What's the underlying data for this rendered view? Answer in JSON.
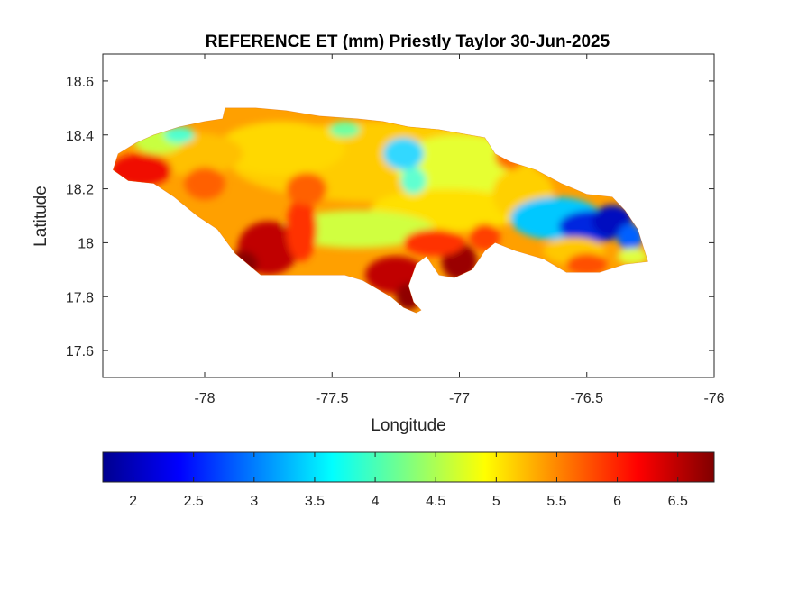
{
  "figure": {
    "title": "REFERENCE ET (mm) Priestly Taylor 30-Jun-2025",
    "xlabel": "Longitude",
    "ylabel": "Latitude"
  },
  "map": {
    "xlim": [
      -78.4,
      -76.0
    ],
    "ylim": [
      17.5,
      18.7
    ],
    "x_ticks": [
      -78,
      -77.5,
      -77,
      -76.5,
      -76
    ],
    "x_tick_labels": [
      "-78",
      "-77.5",
      "-77",
      "-76.5",
      "-76"
    ],
    "y_ticks": [
      17.6,
      17.8,
      18.0,
      18.2,
      18.4,
      18.6
    ],
    "y_tick_labels": [
      "17.6",
      "17.8",
      "18",
      "18.2",
      "18.4",
      "18.6"
    ],
    "outline": [
      [
        -78.36,
        18.27
      ],
      [
        -78.34,
        18.33
      ],
      [
        -78.27,
        18.37
      ],
      [
        -78.2,
        18.4
      ],
      [
        -78.1,
        18.43
      ],
      [
        -78.0,
        18.45
      ],
      [
        -77.93,
        18.46
      ],
      [
        -77.92,
        18.5
      ],
      [
        -77.8,
        18.5
      ],
      [
        -77.68,
        18.49
      ],
      [
        -77.55,
        18.47
      ],
      [
        -77.4,
        18.46
      ],
      [
        -77.3,
        18.45
      ],
      [
        -77.2,
        18.43
      ],
      [
        -77.08,
        18.42
      ],
      [
        -76.96,
        18.4
      ],
      [
        -76.9,
        18.39
      ],
      [
        -76.86,
        18.33
      ],
      [
        -76.8,
        18.3
      ],
      [
        -76.7,
        18.27
      ],
      [
        -76.6,
        18.22
      ],
      [
        -76.5,
        18.18
      ],
      [
        -76.4,
        18.17
      ],
      [
        -76.35,
        18.12
      ],
      [
        -76.3,
        18.05
      ],
      [
        -76.26,
        17.93
      ],
      [
        -76.35,
        17.92
      ],
      [
        -76.45,
        17.89
      ],
      [
        -76.58,
        17.89
      ],
      [
        -76.67,
        17.94
      ],
      [
        -76.78,
        17.97
      ],
      [
        -76.86,
        18.0
      ],
      [
        -76.9,
        17.97
      ],
      [
        -76.95,
        17.9
      ],
      [
        -77.02,
        17.87
      ],
      [
        -77.08,
        17.88
      ],
      [
        -77.13,
        17.95
      ],
      [
        -77.17,
        17.92
      ],
      [
        -77.2,
        17.84
      ],
      [
        -77.18,
        17.78
      ],
      [
        -77.15,
        17.75
      ],
      [
        -77.17,
        17.74
      ],
      [
        -77.22,
        17.76
      ],
      [
        -77.27,
        17.8
      ],
      [
        -77.38,
        17.86
      ],
      [
        -77.45,
        17.88
      ],
      [
        -77.55,
        17.88
      ],
      [
        -77.65,
        17.88
      ],
      [
        -77.78,
        17.88
      ],
      [
        -77.88,
        17.96
      ],
      [
        -77.95,
        18.05
      ],
      [
        -78.03,
        18.1
      ],
      [
        -78.12,
        18.17
      ],
      [
        -78.2,
        18.22
      ],
      [
        -78.3,
        18.23
      ]
    ]
  },
  "chart_data": {
    "type": "heatmap",
    "title": "REFERENCE ET (mm) Priestly Taylor 30-Jun-2025",
    "xlabel": "Longitude",
    "ylabel": "Latitude",
    "xlim": [
      -78.4,
      -76.0
    ],
    "ylim": [
      17.5,
      18.7
    ],
    "colormap": "jet",
    "clim": [
      1.75,
      6.8
    ],
    "colorbar_ticks": [
      2,
      2.5,
      3,
      3.5,
      4,
      4.5,
      5,
      5.5,
      6,
      6.5
    ],
    "colorbar_tick_labels": [
      "2",
      "2.5",
      "3",
      "3.5",
      "4",
      "4.5",
      "5",
      "5.5",
      "6",
      "6.5"
    ],
    "features": [
      {
        "lon": -76.48,
        "lat": 18.06,
        "value": 2.0
      },
      {
        "lon": -76.6,
        "lat": 18.08,
        "value": 3.2
      },
      {
        "lon": -77.22,
        "lat": 18.33,
        "value": 3.8
      },
      {
        "lon": -77.75,
        "lat": 17.95,
        "value": 6.5
      },
      {
        "lon": -77.25,
        "lat": 17.87,
        "value": 6.6
      },
      {
        "lon": -77.0,
        "lat": 17.93,
        "value": 6.5
      },
      {
        "lon": -78.25,
        "lat": 18.28,
        "value": 6.2
      }
    ]
  }
}
